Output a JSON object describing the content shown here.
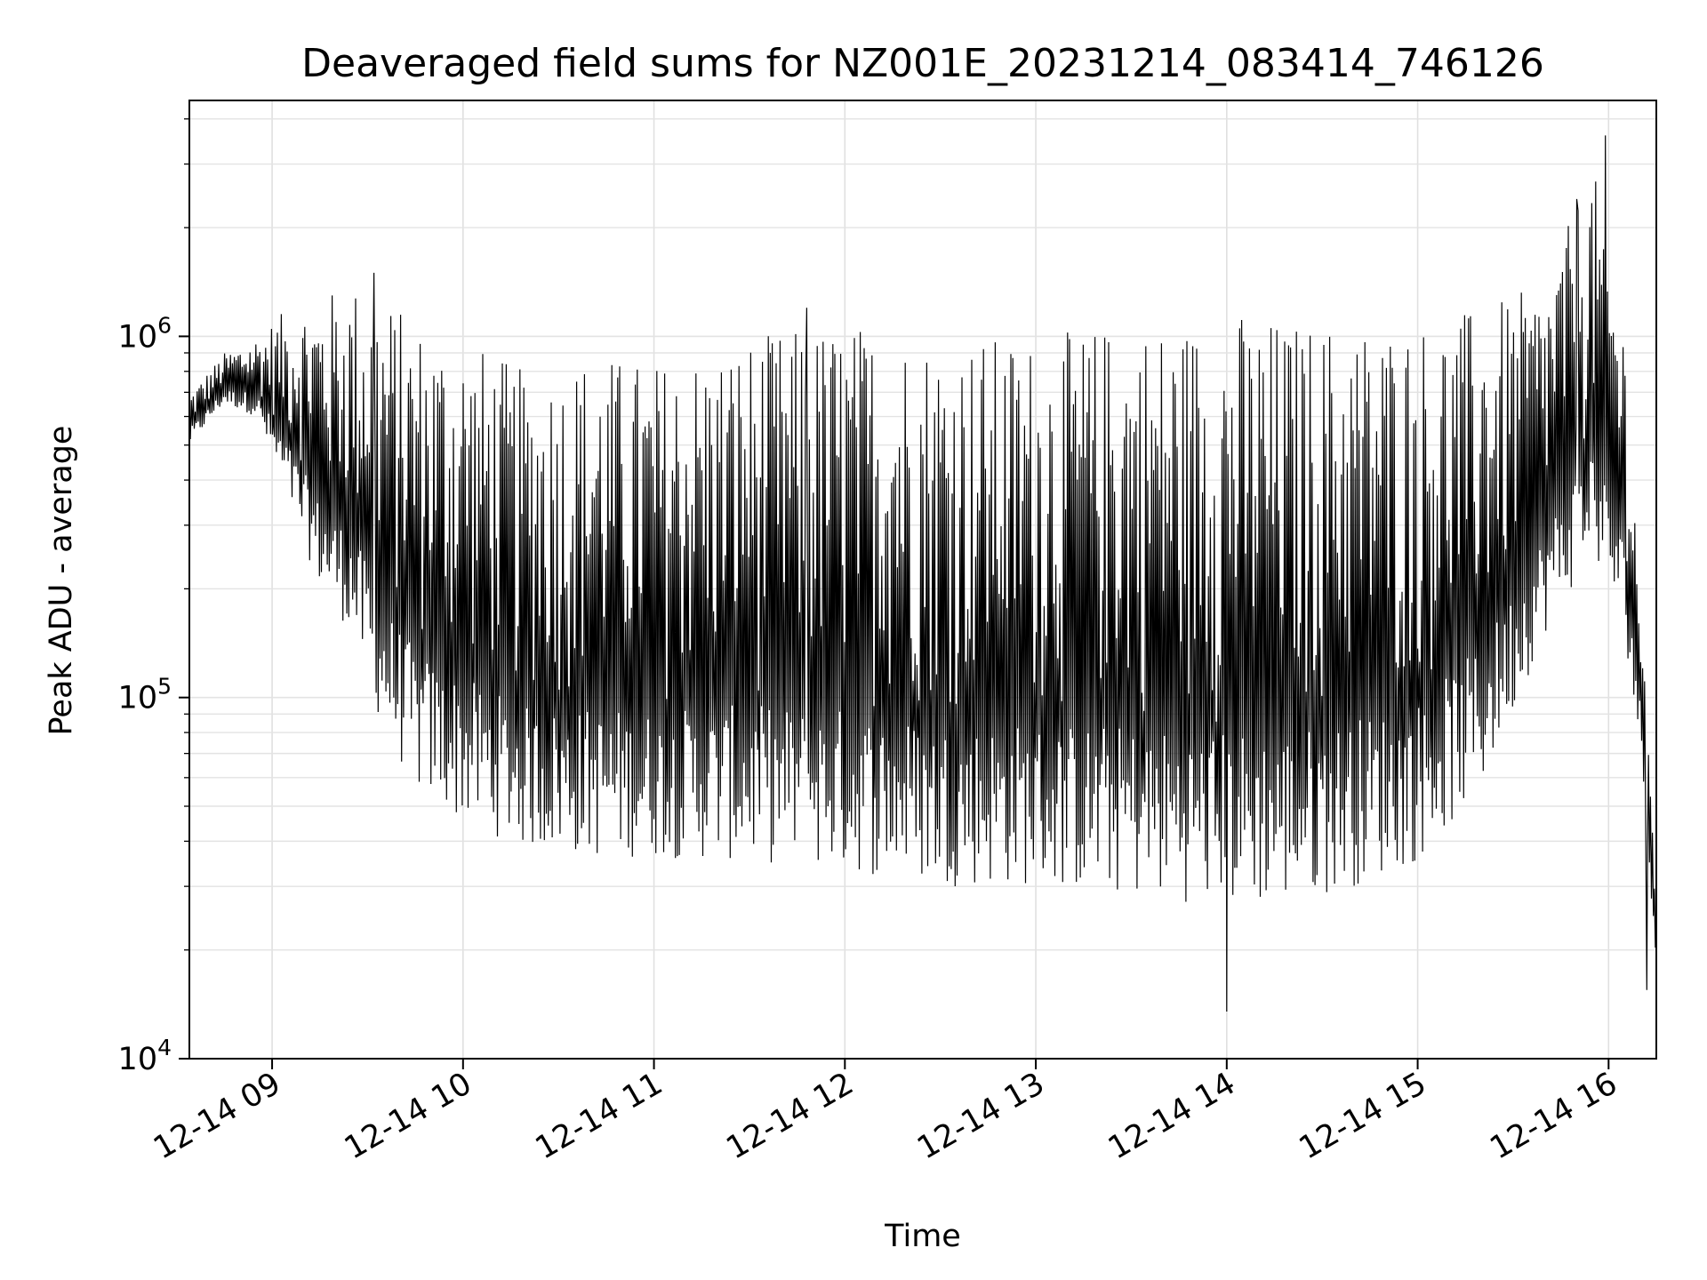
{
  "chart_data": {
    "type": "line",
    "title": "Deaveraged field sums for NZ001E_20231214_083414_746126",
    "xlabel": "Time",
    "ylabel": "Peak ADU - average",
    "yscale": "log",
    "grid": true,
    "legend": "none",
    "line_color": "#000000",
    "xlim": [
      "2023-12-14 08:34",
      "2023-12-14 16:15"
    ],
    "ylim": [
      10000,
      4500000
    ],
    "x_ticks": [
      {
        "t": "2023-12-14 09:00",
        "label": "12-14 09"
      },
      {
        "t": "2023-12-14 10:00",
        "label": "12-14 10"
      },
      {
        "t": "2023-12-14 11:00",
        "label": "12-14 11"
      },
      {
        "t": "2023-12-14 12:00",
        "label": "12-14 12"
      },
      {
        "t": "2023-12-14 13:00",
        "label": "12-14 13"
      },
      {
        "t": "2023-12-14 14:00",
        "label": "12-14 14"
      },
      {
        "t": "2023-12-14 15:00",
        "label": "12-14 15"
      },
      {
        "t": "2023-12-14 16:00",
        "label": "12-14 16"
      }
    ],
    "y_ticks": [
      {
        "value": 10000,
        "base": "10",
        "exp": "4"
      },
      {
        "value": 100000,
        "base": "10",
        "exp": "5"
      },
      {
        "value": 1000000,
        "base": "10",
        "exp": "6"
      }
    ],
    "series": [
      {
        "name": "",
        "envelope": true,
        "time": [
          "2023-12-14 08:34",
          "2023-12-14 08:45",
          "2023-12-14 08:55",
          "2023-12-14 09:05",
          "2023-12-14 09:15",
          "2023-12-14 09:25",
          "2023-12-14 09:35",
          "2023-12-14 09:45",
          "2023-12-14 10:00",
          "2023-12-14 10:20",
          "2023-12-14 10:40",
          "2023-12-14 11:00",
          "2023-12-14 11:30",
          "2023-12-14 12:00",
          "2023-12-14 12:30",
          "2023-12-14 13:00",
          "2023-12-14 13:30",
          "2023-12-14 13:50",
          "2023-12-14 14:00",
          "2023-12-14 14:20",
          "2023-12-14 14:40",
          "2023-12-14 15:00",
          "2023-12-14 15:20",
          "2023-12-14 15:40",
          "2023-12-14 15:55",
          "2023-12-14 16:05",
          "2023-12-14 16:10",
          "2023-12-14 16:15"
        ],
        "low": [
          500000,
          650000,
          600000,
          350000,
          200000,
          150000,
          80000,
          55000,
          45000,
          38000,
          36000,
          36000,
          35000,
          33000,
          30000,
          30000,
          28000,
          27000,
          26000,
          27000,
          30000,
          35000,
          55000,
          150000,
          250000,
          150000,
          70000,
          18000
        ],
        "high": [
          700000,
          900000,
          1000000,
          1200000,
          1300000,
          1400000,
          1300000,
          1100000,
          1000000,
          800000,
          900000,
          850000,
          1000000,
          1100000,
          1000000,
          1000000,
          1100000,
          1100000,
          1200000,
          1100000,
          1100000,
          1100000,
          1200000,
          1400000,
          3000000,
          1100000,
          200000,
          30000
        ],
        "spikes": [
          {
            "t": "2023-12-14 09:32",
            "value": 1500000
          },
          {
            "t": "2023-12-14 11:48",
            "value": 1200000
          },
          {
            "t": "2023-12-14 15:50",
            "value": 2400000
          },
          {
            "t": "2023-12-14 15:59",
            "value": 3600000
          },
          {
            "t": "2023-12-14 14:00",
            "value": 13500
          },
          {
            "t": "2023-12-14 16:12",
            "value": 15500
          }
        ]
      }
    ]
  }
}
